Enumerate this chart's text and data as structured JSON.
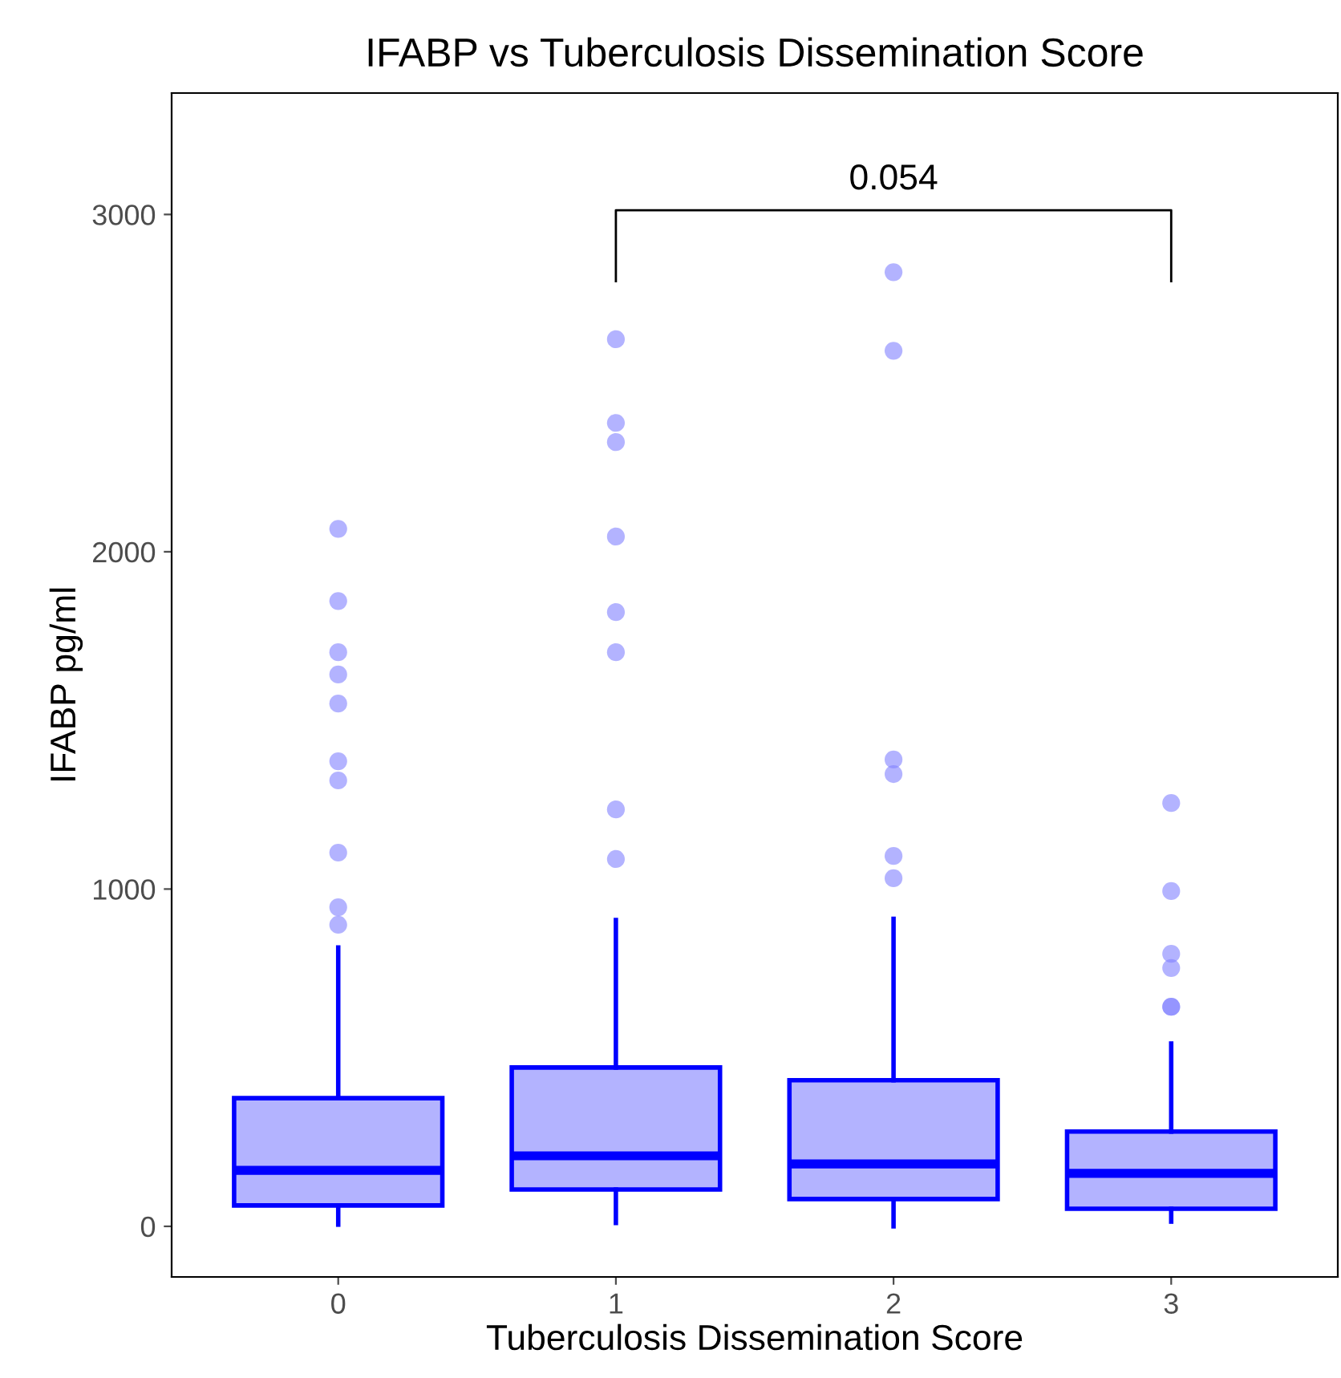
{
  "chart_data": {
    "type": "box",
    "title": "IFABP vs Tuberculosis Dissemination Score",
    "xlabel": "Tuberculosis Dissemination Score",
    "ylabel": "IFABP pg/ml",
    "categories": [
      "0",
      "1",
      "2",
      "3"
    ],
    "series": [
      {
        "color": "#0000ff",
        "boxes": [
          {
            "low": 5,
            "q1": 62,
            "median": 166,
            "q3": 380,
            "high": 827,
            "outliers": [
              2068,
              1854,
              1702,
              1636,
              1550,
              1379,
              1322,
              1108,
              946,
              894
            ]
          },
          {
            "low": 10,
            "q1": 109,
            "median": 209,
            "q3": 471,
            "high": 908,
            "outliers": [
              2630,
              2382,
              2325,
              2045,
              1821,
              1702,
              1236,
              1089
            ]
          },
          {
            "low": 0,
            "q1": 81,
            "median": 185,
            "q3": 433,
            "high": 912,
            "outliers": [
              2829,
              2596,
              1384,
              1341,
              1098,
              1032
            ]
          },
          {
            "low": 14,
            "q1": 52,
            "median": 157,
            "q3": 281,
            "high": 542,
            "outliers": [
              1255,
              994,
              808,
              766,
              651,
              651
            ]
          }
        ]
      }
    ],
    "ylim": [
      -150,
      3360
    ],
    "yticks": [
      0,
      1000,
      2000,
      3000
    ],
    "annotations": [
      "0.054"
    ],
    "grid": false
  }
}
